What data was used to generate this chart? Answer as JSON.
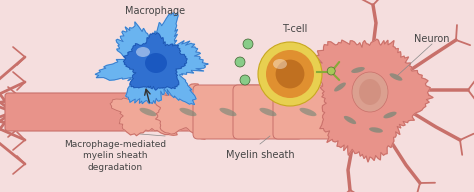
{
  "background_color": "#f5dede",
  "labels": {
    "macrophage": "Macrophage",
    "tcell": "T-cell",
    "neuron": "Neuron",
    "myelin": "Myelin sheath",
    "degradation": "Macrophage-mediated\nmyelin sheath\ndegradation"
  },
  "colors": {
    "macrophage_outer": "#5aaae8",
    "macrophage_mid": "#3080d8",
    "macrophage_inner": "#1a60c0",
    "tcell_outer": "#e8d040",
    "tcell_mid": "#e09030",
    "tcell_inner": "#c06820",
    "tcell_receptor": "#88aa40",
    "neuron_body": "#e8938a",
    "neuron_edge": "#c8706a",
    "neuron_nucleus": "#d47868",
    "axon_fill": "#e8938a",
    "axon_edge": "#c8706a",
    "myelin_fill": "#f0a898",
    "myelin_edge": "#c8706a",
    "text_color": "#444444",
    "arrow_color": "#333333",
    "small_dots": "#88cc88",
    "bacilli": "#7a8878"
  },
  "figsize": [
    4.74,
    1.92
  ],
  "dpi": 100
}
